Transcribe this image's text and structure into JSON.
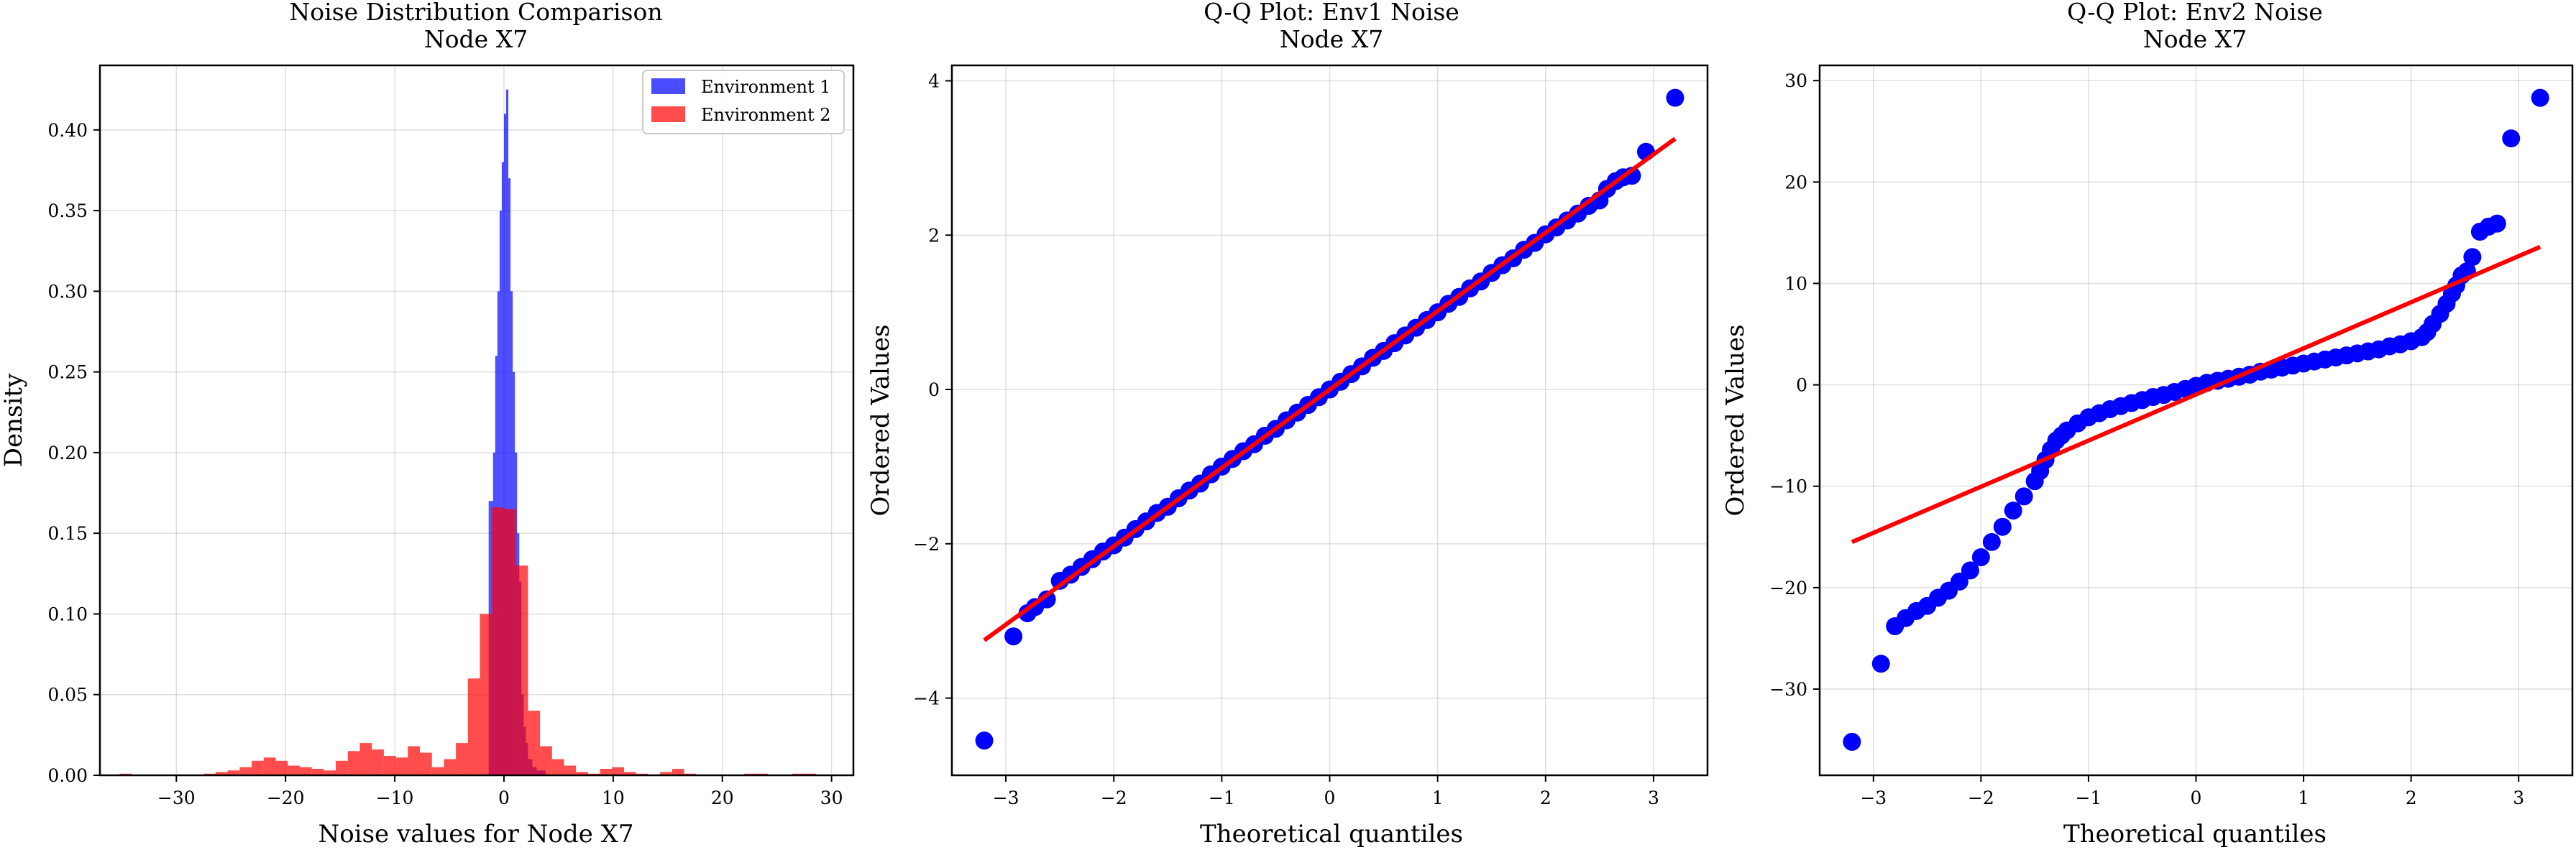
{
  "colors": {
    "env1": "#0000ff",
    "env2": "#ff0000",
    "qq_point": "#0000ff",
    "qq_line": "#ff0000"
  },
  "chart_data": [
    {
      "type": "bar",
      "subtype": "histogram",
      "title": "Noise Distribution Comparison",
      "subtitle": "Node X7",
      "xlabel": "Noise values for Node X7",
      "ylabel": "Density",
      "xlim": [
        -37,
        32
      ],
      "ylim": [
        0,
        0.44
      ],
      "xticks": [
        -30,
        -20,
        -10,
        0,
        10,
        20,
        30
      ],
      "yticks": [
        0,
        0.05,
        0.1,
        0.15,
        0.2,
        0.25,
        0.3,
        0.35,
        0.4
      ],
      "ytick_labels": [
        "0.00",
        "0.05",
        "0.10",
        "0.15",
        "0.20",
        "0.25",
        "0.30",
        "0.35",
        "0.40"
      ],
      "grid": true,
      "legend": {
        "position": "top-right",
        "entries": [
          "Environment 1",
          "Environment 2"
        ]
      },
      "series": [
        {
          "name": "Environment 1",
          "color": "#0000ff",
          "bins": [
            [
              -1.6,
              -1.4,
              0.0
            ],
            [
              -1.4,
              -1.2,
              0.17
            ],
            [
              -1.2,
              -1.0,
              0.17
            ],
            [
              -1.0,
              -0.8,
              0.2
            ],
            [
              -0.8,
              -0.6,
              0.26
            ],
            [
              -0.6,
              -0.4,
              0.3
            ],
            [
              -0.4,
              -0.2,
              0.35
            ],
            [
              -0.2,
              0.0,
              0.38
            ],
            [
              0.0,
              0.2,
              0.41
            ],
            [
              0.2,
              0.4,
              0.425
            ],
            [
              0.4,
              0.6,
              0.37
            ],
            [
              0.6,
              0.8,
              0.3
            ],
            [
              0.8,
              1.0,
              0.25
            ],
            [
              1.0,
              1.2,
              0.2
            ],
            [
              1.2,
              1.4,
              0.15
            ],
            [
              1.4,
              1.6,
              0.12
            ],
            [
              1.6,
              1.8,
              0.05
            ],
            [
              1.8,
              2.0,
              0.03
            ],
            [
              2.0,
              2.2,
              0.02
            ],
            [
              2.2,
              2.6,
              0.01
            ],
            [
              2.6,
              3.0,
              0.005
            ],
            [
              3.0,
              3.8,
              0.003
            ]
          ]
        },
        {
          "name": "Environment 2",
          "color": "#ff0000",
          "bins": [
            [
              -35.2,
              -34.1,
              0.001
            ],
            [
              -34.1,
              -33.0,
              0.0
            ],
            [
              -33.0,
              -31.9,
              0.0
            ],
            [
              -31.9,
              -30.8,
              0.0
            ],
            [
              -30.8,
              -29.7,
              0.0
            ],
            [
              -29.7,
              -28.6,
              0.0
            ],
            [
              -28.6,
              -27.5,
              0.0
            ],
            [
              -27.5,
              -26.4,
              0.001
            ],
            [
              -26.4,
              -25.3,
              0.002
            ],
            [
              -25.3,
              -24.2,
              0.003
            ],
            [
              -24.2,
              -23.1,
              0.005
            ],
            [
              -23.1,
              -22.0,
              0.009
            ],
            [
              -22.0,
              -20.9,
              0.011
            ],
            [
              -20.9,
              -19.8,
              0.009
            ],
            [
              -19.8,
              -18.7,
              0.006
            ],
            [
              -18.7,
              -17.6,
              0.005
            ],
            [
              -17.6,
              -16.5,
              0.004
            ],
            [
              -16.5,
              -15.4,
              0.003
            ],
            [
              -15.4,
              -14.3,
              0.009
            ],
            [
              -14.3,
              -13.2,
              0.015
            ],
            [
              -13.2,
              -12.1,
              0.02
            ],
            [
              -12.1,
              -11.0,
              0.016
            ],
            [
              -11.0,
              -9.9,
              0.012
            ],
            [
              -9.9,
              -8.8,
              0.011
            ],
            [
              -8.8,
              -7.7,
              0.018
            ],
            [
              -7.7,
              -6.6,
              0.014
            ],
            [
              -6.6,
              -5.5,
              0.005
            ],
            [
              -5.5,
              -4.4,
              0.01
            ],
            [
              -4.4,
              -3.3,
              0.02
            ],
            [
              -3.3,
              -2.2,
              0.06
            ],
            [
              -2.2,
              -1.1,
              0.1
            ],
            [
              -1.1,
              0.0,
              0.166
            ],
            [
              0.0,
              1.1,
              0.165
            ],
            [
              1.1,
              2.2,
              0.13
            ],
            [
              2.2,
              3.3,
              0.04
            ],
            [
              3.3,
              4.4,
              0.018
            ],
            [
              4.4,
              5.5,
              0.01
            ],
            [
              5.5,
              6.6,
              0.006
            ],
            [
              6.6,
              7.7,
              0.002
            ],
            [
              7.7,
              8.8,
              0.001
            ],
            [
              8.8,
              9.9,
              0.004
            ],
            [
              9.9,
              11.0,
              0.005
            ],
            [
              11.0,
              12.1,
              0.002
            ],
            [
              12.1,
              13.2,
              0.001
            ],
            [
              13.2,
              14.3,
              0.0
            ],
            [
              14.3,
              15.4,
              0.002
            ],
            [
              15.4,
              16.5,
              0.004
            ],
            [
              16.5,
              17.6,
              0.001
            ],
            [
              17.6,
              18.7,
              0.0
            ],
            [
              18.7,
              19.8,
              0.0
            ],
            [
              19.8,
              20.9,
              0.0
            ],
            [
              20.9,
              22.0,
              0.0
            ],
            [
              22.0,
              23.1,
              0.001
            ],
            [
              23.1,
              24.2,
              0.001
            ],
            [
              24.2,
              25.3,
              0.0
            ],
            [
              25.3,
              26.4,
              0.0
            ],
            [
              26.4,
              27.5,
              0.001
            ],
            [
              27.5,
              28.6,
              0.001
            ]
          ]
        }
      ]
    },
    {
      "type": "scatter",
      "subtype": "qq",
      "title": "Q-Q Plot: Env1 Noise",
      "subtitle": "Node X7",
      "xlabel": "Theoretical quantiles",
      "ylabel": "Ordered Values",
      "xlim": [
        -3.5,
        3.5
      ],
      "ylim": [
        -5.0,
        4.2
      ],
      "xticks": [
        -3,
        -2,
        -1,
        0,
        1,
        2,
        3
      ],
      "xtick_labels": [
        "−3",
        "−2",
        "−1",
        "0",
        "1",
        "2",
        "3"
      ],
      "yticks": [
        -4,
        -2,
        0,
        2,
        4
      ],
      "ytick_labels": [
        "−4",
        "−2",
        "0",
        "2",
        "4"
      ],
      "grid": true,
      "fit_line": {
        "x": [
          -3.2,
          3.2
        ],
        "y": [
          -3.25,
          3.25
        ]
      },
      "points": [
        [
          -3.2,
          -4.55
        ],
        [
          -2.93,
          -3.2
        ],
        [
          -2.8,
          -2.9
        ],
        [
          -2.73,
          -2.82
        ],
        [
          -2.62,
          -2.72
        ],
        [
          -2.5,
          -2.48
        ],
        [
          -2.4,
          -2.4
        ],
        [
          -2.3,
          -2.3
        ],
        [
          -2.2,
          -2.2
        ],
        [
          -2.1,
          -2.1
        ],
        [
          -2.0,
          -2.02
        ],
        [
          -1.9,
          -1.92
        ],
        [
          -1.8,
          -1.81
        ],
        [
          -1.7,
          -1.71
        ],
        [
          -1.6,
          -1.6
        ],
        [
          -1.5,
          -1.52
        ],
        [
          -1.4,
          -1.41
        ],
        [
          -1.3,
          -1.31
        ],
        [
          -1.2,
          -1.22
        ],
        [
          -1.1,
          -1.1
        ],
        [
          -1.0,
          -1.0
        ],
        [
          -0.9,
          -0.9
        ],
        [
          -0.8,
          -0.8
        ],
        [
          -0.7,
          -0.71
        ],
        [
          -0.6,
          -0.6
        ],
        [
          -0.5,
          -0.51
        ],
        [
          -0.4,
          -0.4
        ],
        [
          -0.3,
          -0.3
        ],
        [
          -0.2,
          -0.2
        ],
        [
          -0.1,
          -0.1
        ],
        [
          0.0,
          0.0
        ],
        [
          0.1,
          0.1
        ],
        [
          0.2,
          0.2
        ],
        [
          0.3,
          0.3
        ],
        [
          0.4,
          0.41
        ],
        [
          0.5,
          0.5
        ],
        [
          0.6,
          0.6
        ],
        [
          0.7,
          0.7
        ],
        [
          0.8,
          0.8
        ],
        [
          0.9,
          0.9
        ],
        [
          1.0,
          1.0
        ],
        [
          1.1,
          1.11
        ],
        [
          1.2,
          1.2
        ],
        [
          1.3,
          1.31
        ],
        [
          1.4,
          1.4
        ],
        [
          1.5,
          1.51
        ],
        [
          1.6,
          1.61
        ],
        [
          1.7,
          1.7
        ],
        [
          1.8,
          1.81
        ],
        [
          1.9,
          1.9
        ],
        [
          2.0,
          2.01
        ],
        [
          2.1,
          2.1
        ],
        [
          2.2,
          2.19
        ],
        [
          2.3,
          2.28
        ],
        [
          2.4,
          2.38
        ],
        [
          2.5,
          2.45
        ],
        [
          2.57,
          2.6
        ],
        [
          2.65,
          2.7
        ],
        [
          2.72,
          2.75
        ],
        [
          2.8,
          2.77
        ],
        [
          2.93,
          3.08
        ],
        [
          3.2,
          3.78
        ]
      ]
    },
    {
      "type": "scatter",
      "subtype": "qq",
      "title": "Q-Q Plot: Env2 Noise",
      "subtitle": "Node X7",
      "xlabel": "Theoretical quantiles",
      "ylabel": "Ordered Values",
      "xlim": [
        -3.5,
        3.5
      ],
      "ylim": [
        -38.5,
        31.5
      ],
      "xticks": [
        -3,
        -2,
        -1,
        0,
        1,
        2,
        3
      ],
      "xtick_labels": [
        "−3",
        "−2",
        "−1",
        "0",
        "1",
        "2",
        "3"
      ],
      "yticks": [
        -30,
        -20,
        -10,
        0,
        10,
        20,
        30
      ],
      "ytick_labels": [
        "−30",
        "−20",
        "−10",
        "0",
        "10",
        "20",
        "30"
      ],
      "grid": true,
      "fit_line": {
        "x": [
          -3.2,
          3.2
        ],
        "y": [
          -15.5,
          13.6
        ]
      },
      "points": [
        [
          -3.2,
          -35.2
        ],
        [
          -2.93,
          -27.5
        ],
        [
          -2.8,
          -23.8
        ],
        [
          -2.7,
          -23.0
        ],
        [
          -2.6,
          -22.3
        ],
        [
          -2.5,
          -21.8
        ],
        [
          -2.4,
          -21.0
        ],
        [
          -2.3,
          -20.3
        ],
        [
          -2.2,
          -19.4
        ],
        [
          -2.1,
          -18.3
        ],
        [
          -2.0,
          -17.0
        ],
        [
          -1.9,
          -15.5
        ],
        [
          -1.8,
          -14.0
        ],
        [
          -1.7,
          -12.4
        ],
        [
          -1.6,
          -11.0
        ],
        [
          -1.5,
          -9.5
        ],
        [
          -1.45,
          -8.5
        ],
        [
          -1.4,
          -7.4
        ],
        [
          -1.35,
          -6.4
        ],
        [
          -1.3,
          -5.5
        ],
        [
          -1.25,
          -5.0
        ],
        [
          -1.2,
          -4.5
        ],
        [
          -1.1,
          -3.8
        ],
        [
          -1.0,
          -3.2
        ],
        [
          -0.9,
          -2.8
        ],
        [
          -0.8,
          -2.4
        ],
        [
          -0.7,
          -2.1
        ],
        [
          -0.6,
          -1.8
        ],
        [
          -0.5,
          -1.5
        ],
        [
          -0.4,
          -1.2
        ],
        [
          -0.3,
          -1.0
        ],
        [
          -0.2,
          -0.7
        ],
        [
          -0.1,
          -0.4
        ],
        [
          0.0,
          -0.1
        ],
        [
          0.1,
          0.2
        ],
        [
          0.2,
          0.4
        ],
        [
          0.3,
          0.6
        ],
        [
          0.4,
          0.8
        ],
        [
          0.5,
          1.0
        ],
        [
          0.6,
          1.3
        ],
        [
          0.7,
          1.5
        ],
        [
          0.8,
          1.7
        ],
        [
          0.9,
          1.9
        ],
        [
          1.0,
          2.1
        ],
        [
          1.1,
          2.3
        ],
        [
          1.2,
          2.5
        ],
        [
          1.3,
          2.7
        ],
        [
          1.4,
          2.9
        ],
        [
          1.5,
          3.1
        ],
        [
          1.6,
          3.3
        ],
        [
          1.7,
          3.5
        ],
        [
          1.8,
          3.8
        ],
        [
          1.9,
          4.0
        ],
        [
          2.0,
          4.3
        ],
        [
          2.1,
          4.7
        ],
        [
          2.15,
          5.2
        ],
        [
          2.2,
          6.0
        ],
        [
          2.27,
          7.0
        ],
        [
          2.33,
          8.0
        ],
        [
          2.38,
          9.0
        ],
        [
          2.42,
          9.8
        ],
        [
          2.47,
          10.8
        ],
        [
          2.52,
          11.2
        ],
        [
          2.57,
          12.6
        ],
        [
          2.64,
          15.1
        ],
        [
          2.72,
          15.6
        ],
        [
          2.8,
          15.9
        ],
        [
          2.93,
          24.3
        ],
        [
          3.2,
          28.3
        ]
      ]
    }
  ]
}
